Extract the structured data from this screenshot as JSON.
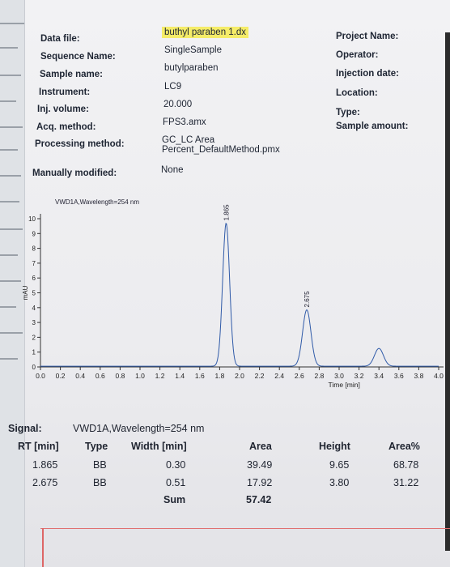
{
  "header": {
    "labels": {
      "data_file": "Data file:",
      "sequence_name": "Sequence Name:",
      "sample_name": "Sample name:",
      "instrument": "Instrument:",
      "inj_volume": "Inj. volume:",
      "acq_method": "Acq. method:",
      "processing_method": "Processing method:",
      "manually_modified": "Manually modified:",
      "project_name": "Project Name:",
      "operator": "Operator:",
      "injection_date": "Injection date:",
      "location": "Location:",
      "type": "Type:",
      "sample_amount": "Sample amount:"
    },
    "values": {
      "data_file": "buthyl paraben 1.dx",
      "sequence_name": "SingleSample",
      "sample_name": "butylparaben",
      "instrument": "LC9",
      "inj_volume": "20.000",
      "acq_method": "FPS3.amx",
      "processing_method_line1": "GC_LC Area",
      "processing_method_line2": "Percent_DefaultMethod.pmx",
      "manually_modified": "None"
    },
    "highlight_color": "#f5ec68"
  },
  "chart_data": {
    "type": "line",
    "title": "VWD1A,Wavelength=254 nm",
    "xlabel": "Time [min]",
    "ylabel": "mAU",
    "xlim": [
      0.0,
      4.0
    ],
    "ylim": [
      0,
      10
    ],
    "x_ticks": [
      "0.0",
      "0.2",
      "0.4",
      "0.6",
      "0.8",
      "1.0",
      "1.2",
      "1.4",
      "1.6",
      "1.8",
      "2.0",
      "2.2",
      "2.4",
      "2.6",
      "2.8",
      "3.0",
      "3.2",
      "3.4",
      "3.6",
      "3.8",
      "4.0"
    ],
    "y_ticks": [
      "0",
      "1",
      "2",
      "3",
      "4",
      "5",
      "6",
      "7",
      "8",
      "9",
      "10"
    ],
    "peaks": [
      {
        "rt": 1.865,
        "height": 9.65,
        "label": "1.865"
      },
      {
        "rt": 2.675,
        "height": 3.8,
        "label": "2.675"
      },
      {
        "rt": 3.4,
        "height": 1.2,
        "label": ""
      }
    ],
    "grid": false,
    "line_color": "#2f5aa8"
  },
  "signal": {
    "label": "Signal:",
    "value": "VWD1A,Wavelength=254 nm"
  },
  "table": {
    "headers": [
      "RT [min]",
      "Type",
      "Width [min]",
      "Area",
      "Height",
      "Area%"
    ],
    "rows": [
      [
        "1.865",
        "BB",
        "0.30",
        "39.49",
        "9.65",
        "68.78"
      ],
      [
        "2.675",
        "BB",
        "0.51",
        "17.92",
        "3.80",
        "31.22"
      ]
    ],
    "sum_label": "Sum",
    "sum_area": "57.42"
  }
}
